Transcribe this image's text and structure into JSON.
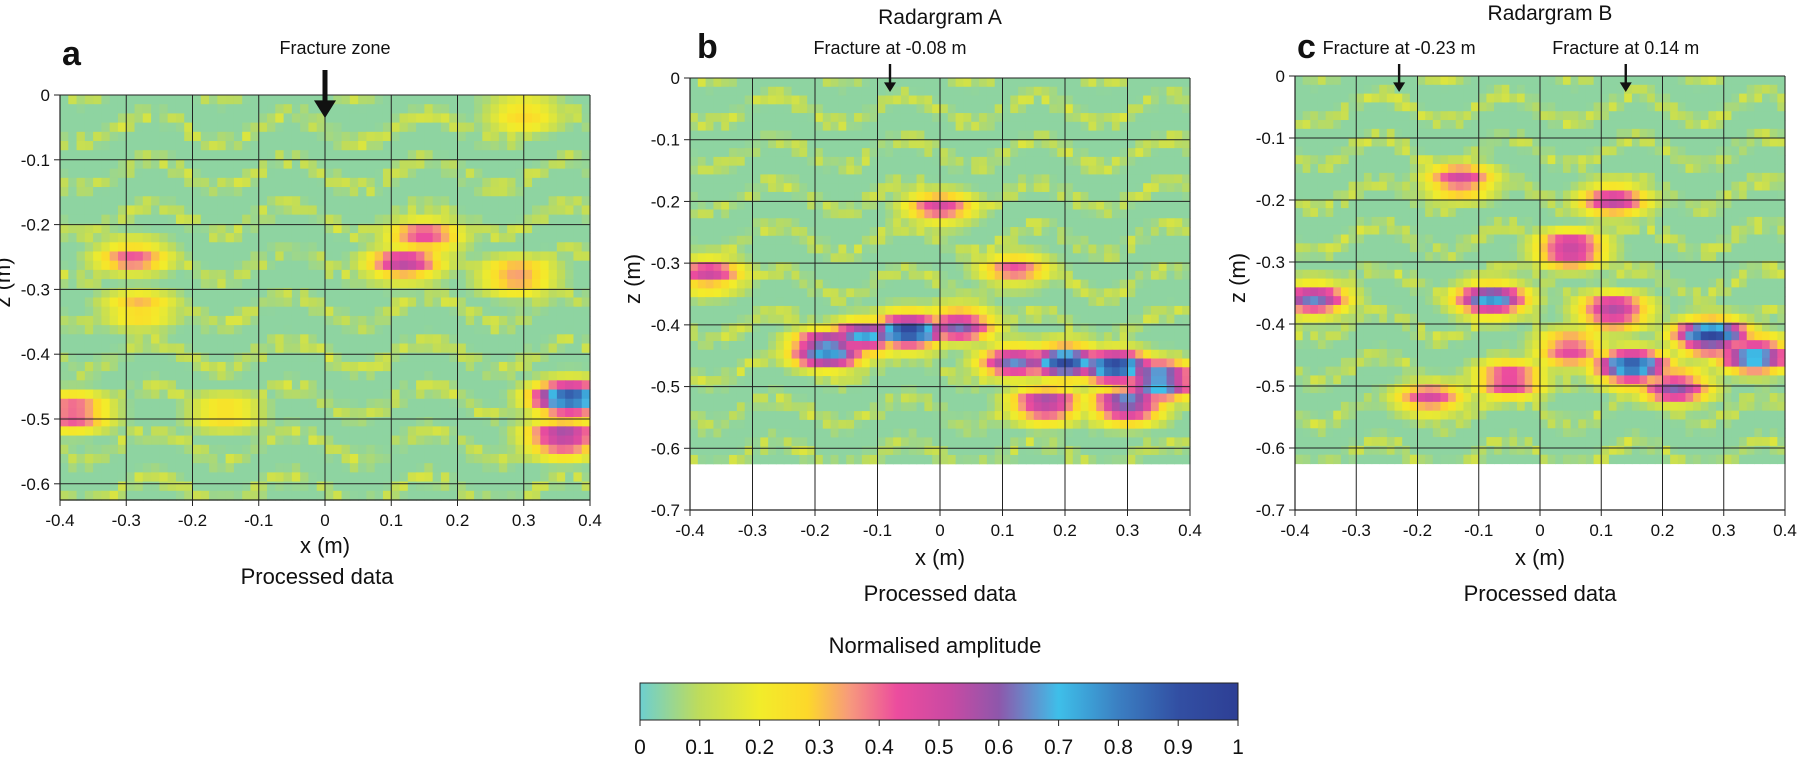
{
  "chart_data": [
    {
      "type": "heatmap",
      "panel_label": "a",
      "title": "",
      "annotations": [
        {
          "text": "Fracture zone",
          "x": 0
        }
      ],
      "xlabel": "x (m)",
      "ylabel": "z (m)",
      "caption": "Processed data",
      "xlim": [
        -0.4,
        0.4
      ],
      "ylim": [
        -0.625,
        0
      ],
      "data_zmin": -0.625,
      "xticks": [
        "-0.4",
        "-0.3",
        "-0.2",
        "-0.1",
        "0",
        "0.1",
        "0.2",
        "0.3",
        "0.4"
      ],
      "yticks": [
        "0",
        "-0.1",
        "-0.2",
        "-0.3",
        "-0.4",
        "-0.5",
        "-0.6"
      ],
      "grid": true,
      "anomalies": [
        {
          "x": 0.12,
          "z": -0.26,
          "value": 0.5
        },
        {
          "x": 0.15,
          "z": -0.22,
          "value": 0.45
        },
        {
          "x": -0.29,
          "z": -0.25,
          "value": 0.4
        },
        {
          "x": -0.28,
          "z": -0.33,
          "value": 0.35
        },
        {
          "x": 0.29,
          "z": -0.28,
          "value": 0.4
        },
        {
          "x": 0.37,
          "z": -0.47,
          "value": 0.85
        },
        {
          "x": 0.36,
          "z": -0.53,
          "value": 0.6
        },
        {
          "x": -0.38,
          "z": -0.49,
          "value": 0.5
        },
        {
          "x": -0.15,
          "z": -0.49,
          "value": 0.3
        },
        {
          "x": 0.3,
          "z": -0.03,
          "value": 0.3
        }
      ]
    },
    {
      "type": "heatmap",
      "panel_label": "b",
      "title": "Radargram A",
      "annotations": [
        {
          "text": "Fracture at -0.08 m",
          "x": -0.08
        }
      ],
      "xlabel": "x (m)",
      "ylabel": "z (m)",
      "caption": "Processed data",
      "xlim": [
        -0.4,
        0.4
      ],
      "ylim": [
        -0.7,
        0
      ],
      "data_zmin": -0.625,
      "xticks": [
        "-0.4",
        "-0.3",
        "-0.2",
        "-0.1",
        "0",
        "0.1",
        "0.2",
        "0.3",
        "0.4"
      ],
      "yticks": [
        "0",
        "-0.1",
        "-0.2",
        "-0.3",
        "-0.4",
        "-0.5",
        "-0.6",
        "-0.7"
      ],
      "grid": true,
      "anomalies": [
        {
          "x": -0.18,
          "z": -0.44,
          "value": 0.85
        },
        {
          "x": -0.12,
          "z": -0.42,
          "value": 0.7
        },
        {
          "x": -0.05,
          "z": -0.41,
          "value": 0.9
        },
        {
          "x": 0.03,
          "z": -0.4,
          "value": 0.6
        },
        {
          "x": 0.12,
          "z": -0.46,
          "value": 0.6
        },
        {
          "x": 0.2,
          "z": -0.46,
          "value": 0.85
        },
        {
          "x": 0.28,
          "z": -0.47,
          "value": 0.9
        },
        {
          "x": 0.35,
          "z": -0.49,
          "value": 0.85
        },
        {
          "x": 0.17,
          "z": -0.53,
          "value": 0.6
        },
        {
          "x": 0.3,
          "z": -0.53,
          "value": 0.7
        },
        {
          "x": -0.37,
          "z": -0.32,
          "value": 0.5
        },
        {
          "x": 0.0,
          "z": -0.21,
          "value": 0.45
        },
        {
          "x": 0.12,
          "z": -0.31,
          "value": 0.4
        }
      ]
    },
    {
      "type": "heatmap",
      "panel_label": "c",
      "title": "Radargram B",
      "annotations": [
        {
          "text": "Fracture at -0.23 m",
          "x": -0.23
        },
        {
          "text": "Fracture at 0.14 m",
          "x": 0.14
        }
      ],
      "xlabel": "x (m)",
      "ylabel": "z (m)",
      "caption": "Processed data",
      "xlim": [
        -0.4,
        0.4
      ],
      "ylim": [
        -0.7,
        0
      ],
      "data_zmin": -0.625,
      "xticks": [
        "-0.4",
        "-0.3",
        "-0.2",
        "-0.1",
        "0",
        "0.1",
        "0.2",
        "0.3",
        "0.4"
      ],
      "yticks": [
        "0",
        "-0.1",
        "-0.2",
        "-0.3",
        "-0.4",
        "-0.5",
        "-0.6",
        "-0.7"
      ],
      "grid": true,
      "anomalies": [
        {
          "x": -0.37,
          "z": -0.36,
          "value": 0.6
        },
        {
          "x": -0.13,
          "z": -0.17,
          "value": 0.5
        },
        {
          "x": 0.12,
          "z": -0.2,
          "value": 0.5
        },
        {
          "x": 0.05,
          "z": -0.28,
          "value": 0.6
        },
        {
          "x": -0.08,
          "z": -0.36,
          "value": 0.7
        },
        {
          "x": 0.12,
          "z": -0.38,
          "value": 0.6
        },
        {
          "x": 0.28,
          "z": -0.42,
          "value": 0.9
        },
        {
          "x": 0.15,
          "z": -0.47,
          "value": 0.85
        },
        {
          "x": 0.35,
          "z": -0.45,
          "value": 0.75
        },
        {
          "x": -0.05,
          "z": -0.49,
          "value": 0.55
        },
        {
          "x": -0.18,
          "z": -0.52,
          "value": 0.45
        },
        {
          "x": 0.22,
          "z": -0.5,
          "value": 0.6
        },
        {
          "x": 0.05,
          "z": -0.44,
          "value": 0.5
        }
      ]
    }
  ],
  "colorbar": {
    "title": "Normalised amplitude",
    "range": [
      0,
      1
    ],
    "ticks": [
      "0",
      "0.1",
      "0.2",
      "0.3",
      "0.4",
      "0.5",
      "0.6",
      "0.7",
      "0.8",
      "0.9",
      "1"
    ],
    "stops": [
      {
        "v": 0.0,
        "color": "#6dcfd0"
      },
      {
        "v": 0.1,
        "color": "#bfdc5a"
      },
      {
        "v": 0.2,
        "color": "#f2ec2a"
      },
      {
        "v": 0.28,
        "color": "#fdd82a"
      },
      {
        "v": 0.35,
        "color": "#f79a7c"
      },
      {
        "v": 0.43,
        "color": "#ec4c9e"
      },
      {
        "v": 0.52,
        "color": "#c84aa3"
      },
      {
        "v": 0.6,
        "color": "#8e57ab"
      },
      {
        "v": 0.7,
        "color": "#3ebfe9"
      },
      {
        "v": 0.8,
        "color": "#3b7fc2"
      },
      {
        "v": 0.9,
        "color": "#324fa3"
      },
      {
        "v": 1.0,
        "color": "#2e3f95"
      }
    ]
  }
}
